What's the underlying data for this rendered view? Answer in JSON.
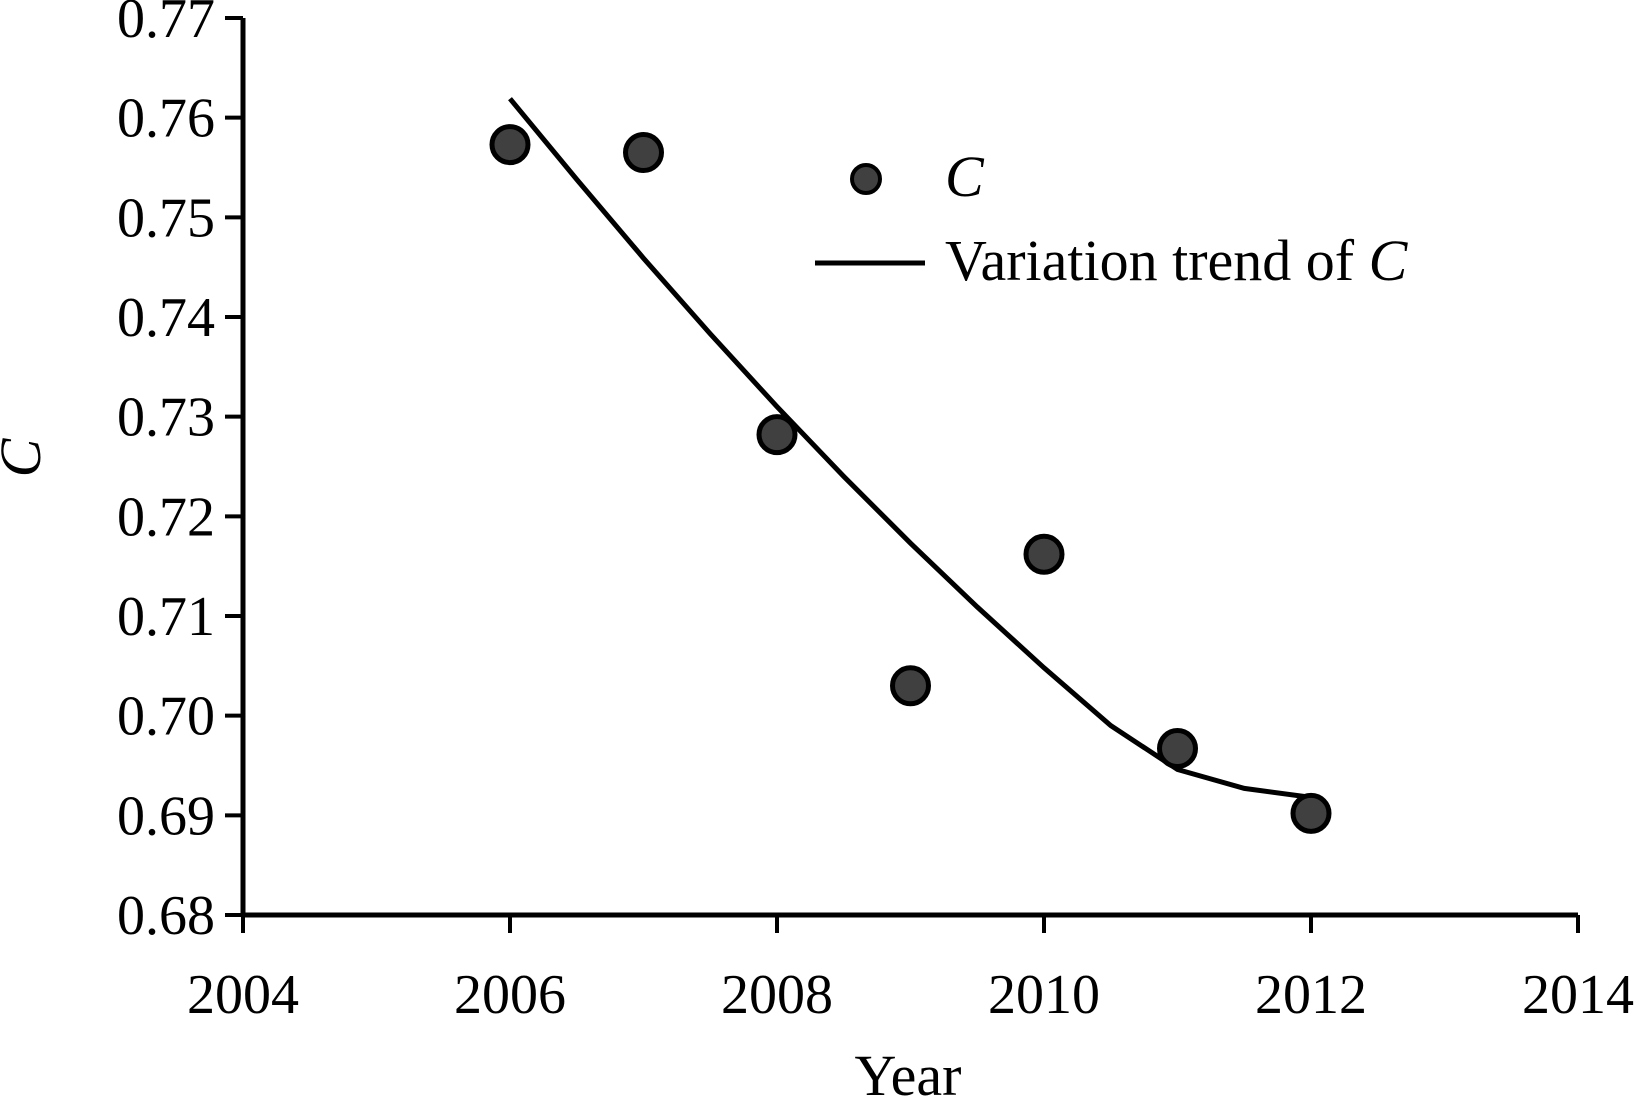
{
  "chart_data": {
    "type": "scatter",
    "xlabel": "Year",
    "ylabel": "C",
    "xlim": [
      2004,
      2014
    ],
    "ylim": [
      0.68,
      0.77
    ],
    "x_ticks": [
      "2004",
      "2006",
      "2008",
      "2010",
      "2012",
      "2014"
    ],
    "y_ticks": [
      "0.68",
      "0.69",
      "0.70",
      "0.71",
      "0.72",
      "0.73",
      "0.74",
      "0.75",
      "0.76",
      "0.77"
    ],
    "grid": false,
    "legend_position": "top-right",
    "series": [
      {
        "name": "C",
        "kind": "scatter",
        "color": "#404040",
        "x": [
          2006,
          2007,
          2008,
          2009,
          2010,
          2011,
          2012
        ],
        "y": [
          0.7573,
          0.7565,
          0.7282,
          0.703,
          0.7162,
          0.6967,
          0.6902
        ]
      },
      {
        "name_prefix": "Variation trend of ",
        "name_suffix": "C",
        "kind": "line",
        "color": "#000000",
        "x": [
          2006,
          2006.5,
          2007,
          2007.5,
          2008,
          2008.5,
          2009,
          2009.5,
          2010,
          2010.5,
          2011,
          2011.5,
          2012
        ],
        "y": [
          0.7619,
          0.7538,
          0.7459,
          0.7383,
          0.731,
          0.724,
          0.7173,
          0.7109,
          0.7048,
          0.699,
          0.6946,
          0.6927,
          0.6918
        ]
      }
    ]
  }
}
